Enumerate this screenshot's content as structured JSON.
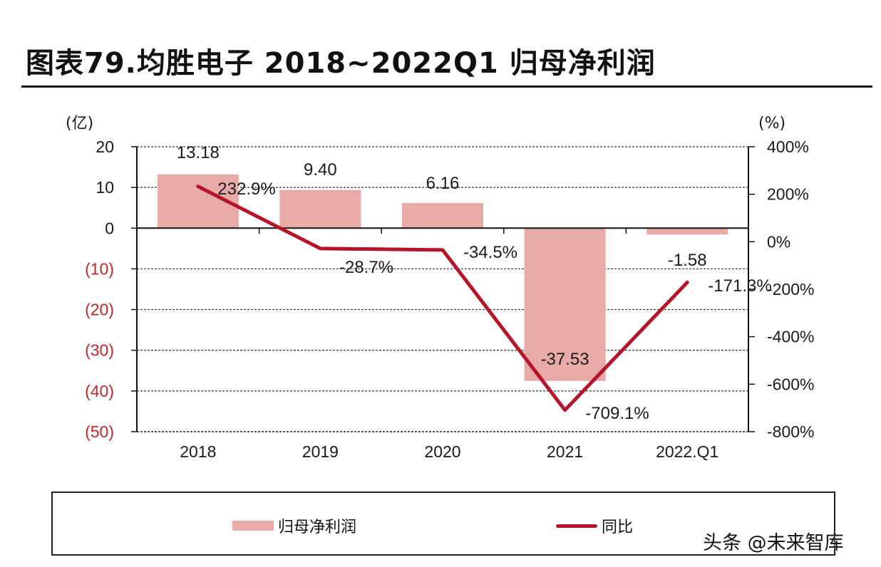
{
  "title": "图表79.均胜电子 2018~2022Q1 归母净利润",
  "watermark": "头条 @未来智库",
  "colors": {
    "bar": "#e8aaa6",
    "line": "#b5152b",
    "negative_tick": "#c0272d",
    "text": "#1a1a1a"
  },
  "chart_data": {
    "type": "bar",
    "title": "图表79.均胜电子 2018~2022Q1 归母净利润",
    "xlabel": "",
    "ylabel": "(亿)",
    "ylabel_right": "(%)",
    "categories": [
      "2018",
      "2019",
      "2020",
      "2021",
      "2022.Q1"
    ],
    "series": [
      {
        "name": "归母净利润",
        "type": "bar",
        "axis": "left",
        "values": [
          13.18,
          9.4,
          6.16,
          -37.53,
          -1.58
        ],
        "labels": [
          "13.18",
          "9.40",
          "6.16",
          "-37.53",
          "-1.58"
        ]
      },
      {
        "name": "同比",
        "type": "line",
        "axis": "right",
        "values": [
          232.9,
          -28.7,
          -34.5,
          -709.1,
          -171.3
        ],
        "labels": [
          "232.9%",
          "-28.7%",
          "-34.5%",
          "-709.1%",
          "-171.3%"
        ]
      }
    ],
    "ylim": [
      -50,
      20
    ],
    "yticks": [
      20,
      10,
      0,
      -10,
      -20,
      -30,
      -40,
      -50
    ],
    "ytick_labels": [
      "20",
      "10",
      "0",
      "(10)",
      "(20)",
      "(30)",
      "(40)",
      "(50)"
    ],
    "ylim_right": [
      -800,
      400
    ],
    "yticks_right": [
      400,
      200,
      0,
      -200,
      -400,
      -600,
      -800
    ],
    "ytick_labels_right": [
      "400%",
      "200%",
      "0%",
      "-200%",
      "-400%",
      "-600%",
      "-800%"
    ],
    "grid": "horizontal dashed",
    "legend": {
      "placement": "bottom",
      "entries": [
        "归母净利润",
        "同比"
      ]
    }
  }
}
